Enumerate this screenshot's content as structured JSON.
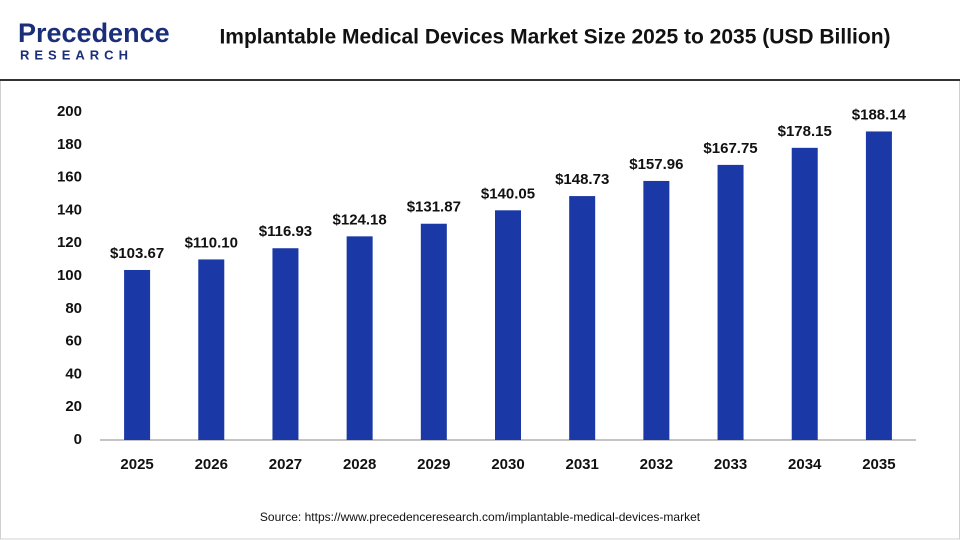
{
  "logo": {
    "name": "Precedence",
    "tagline": "RESEARCH"
  },
  "source": "Source: https://www.precedenceresearch.com/implantable-medical-devices-market",
  "chart_data": {
    "type": "bar",
    "title": "Implantable Medical Devices Market Size 2025 to 2035 (USD Billion)",
    "categories": [
      "2025",
      "2026",
      "2027",
      "2028",
      "2029",
      "2030",
      "2031",
      "2032",
      "2033",
      "2034",
      "2035"
    ],
    "values": [
      103.67,
      110.1,
      116.93,
      124.18,
      131.87,
      140.05,
      148.73,
      157.96,
      167.75,
      178.15,
      188.14
    ],
    "value_labels": [
      "$103.67",
      "$110.10",
      "$116.93",
      "$124.18",
      "$131.87",
      "$140.05",
      "$148.73",
      "$157.96",
      "$167.75",
      "$178.15",
      "$188.14"
    ],
    "color": "#1a38a6",
    "ylim": [
      0,
      200
    ],
    "yticks": [
      0,
      20,
      40,
      60,
      80,
      100,
      120,
      140,
      160,
      180,
      200
    ],
    "grid": false
  }
}
